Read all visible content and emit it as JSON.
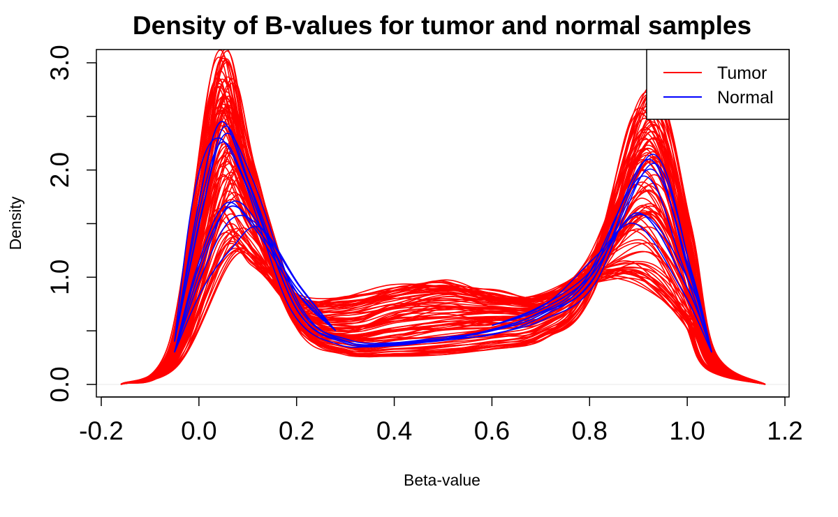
{
  "chart_data": {
    "type": "line",
    "title": "Density of B-values for tumor and normal samples",
    "xlabel": "Beta-value",
    "ylabel": "Density",
    "xlim": [
      -0.2,
      1.2
    ],
    "ylim": [
      0,
      3.0
    ],
    "x_ticks": [
      -0.2,
      0.0,
      0.2,
      0.4,
      0.6,
      0.8,
      1.0,
      1.2
    ],
    "x_tick_labels": [
      "-0.2",
      "0.0",
      "0.2",
      "0.4",
      "0.6",
      "0.8",
      "1.0",
      "1.2"
    ],
    "y_ticks": [
      0,
      0.5,
      1.0,
      1.5,
      2.0,
      2.5,
      3.0
    ],
    "y_tick_labels": [
      "0.0",
      "",
      "1.0",
      "",
      "2.0",
      "",
      "3.0"
    ],
    "grid": false,
    "legend_position": "top-right",
    "series": [
      {
        "name": "Tumor",
        "color": "#ff0000",
        "representative_curves": [
          {
            "x": [
              -0.16,
              -0.05,
              0.04,
              0.1,
              0.2,
              0.3,
              0.4,
              0.5,
              0.6,
              0.7,
              0.8,
              0.92,
              1.0,
              1.05,
              1.16
            ],
            "y": [
              0,
              0.4,
              2.98,
              2.1,
              0.6,
              0.3,
              0.28,
              0.3,
              0.35,
              0.45,
              0.9,
              2.7,
              1.5,
              0.3,
              0
            ]
          },
          {
            "x": [
              -0.16,
              -0.05,
              0.04,
              0.1,
              0.2,
              0.3,
              0.4,
              0.5,
              0.6,
              0.7,
              0.8,
              0.92,
              1.0,
              1.05,
              1.16
            ],
            "y": [
              0,
              0.35,
              2.5,
              1.9,
              0.65,
              0.45,
              0.5,
              0.55,
              0.6,
              0.7,
              1.1,
              2.2,
              1.2,
              0.25,
              0
            ]
          },
          {
            "x": [
              -0.16,
              -0.05,
              0.04,
              0.1,
              0.2,
              0.3,
              0.4,
              0.5,
              0.6,
              0.7,
              0.8,
              0.92,
              1.0,
              1.05,
              1.16
            ],
            "y": [
              0,
              0.3,
              2.0,
              1.7,
              0.75,
              0.6,
              0.75,
              0.85,
              0.8,
              0.8,
              1.1,
              1.6,
              0.9,
              0.2,
              0
            ]
          },
          {
            "x": [
              -0.16,
              -0.05,
              0.06,
              0.12,
              0.2,
              0.3,
              0.4,
              0.5,
              0.6,
              0.7,
              0.8,
              0.9,
              1.0,
              1.05,
              1.16
            ],
            "y": [
              0,
              0.2,
              1.25,
              1.15,
              0.8,
              0.8,
              0.9,
              0.95,
              0.85,
              0.8,
              1.0,
              1.0,
              0.6,
              0.15,
              0
            ]
          }
        ]
      },
      {
        "name": "Normal",
        "color": "#0000ff",
        "representative_curves": [
          {
            "x": [
              -0.05,
              0.0,
              0.045,
              0.1,
              0.2,
              0.3,
              0.4,
              0.5,
              0.6,
              0.7,
              0.8,
              0.92,
              1.0,
              1.05
            ],
            "y": [
              0.4,
              1.7,
              2.45,
              1.9,
              0.7,
              0.4,
              0.38,
              0.42,
              0.5,
              0.65,
              1.0,
              2.1,
              1.1,
              0.3
            ]
          },
          {
            "x": [
              -0.05,
              0.0,
              0.06,
              0.12,
              0.2,
              0.28
            ],
            "y": [
              0.3,
              1.1,
              1.65,
              1.45,
              0.9,
              0.5
            ]
          },
          {
            "x": [
              0.6,
              0.7,
              0.8,
              0.9,
              1.0,
              1.05
            ],
            "y": [
              0.55,
              0.7,
              1.0,
              1.6,
              0.9,
              0.3
            ]
          }
        ]
      }
    ]
  },
  "legend": {
    "items": [
      {
        "label": "Tumor",
        "color": "#ff0000"
      },
      {
        "label": "Normal",
        "color": "#0000ff"
      }
    ]
  }
}
